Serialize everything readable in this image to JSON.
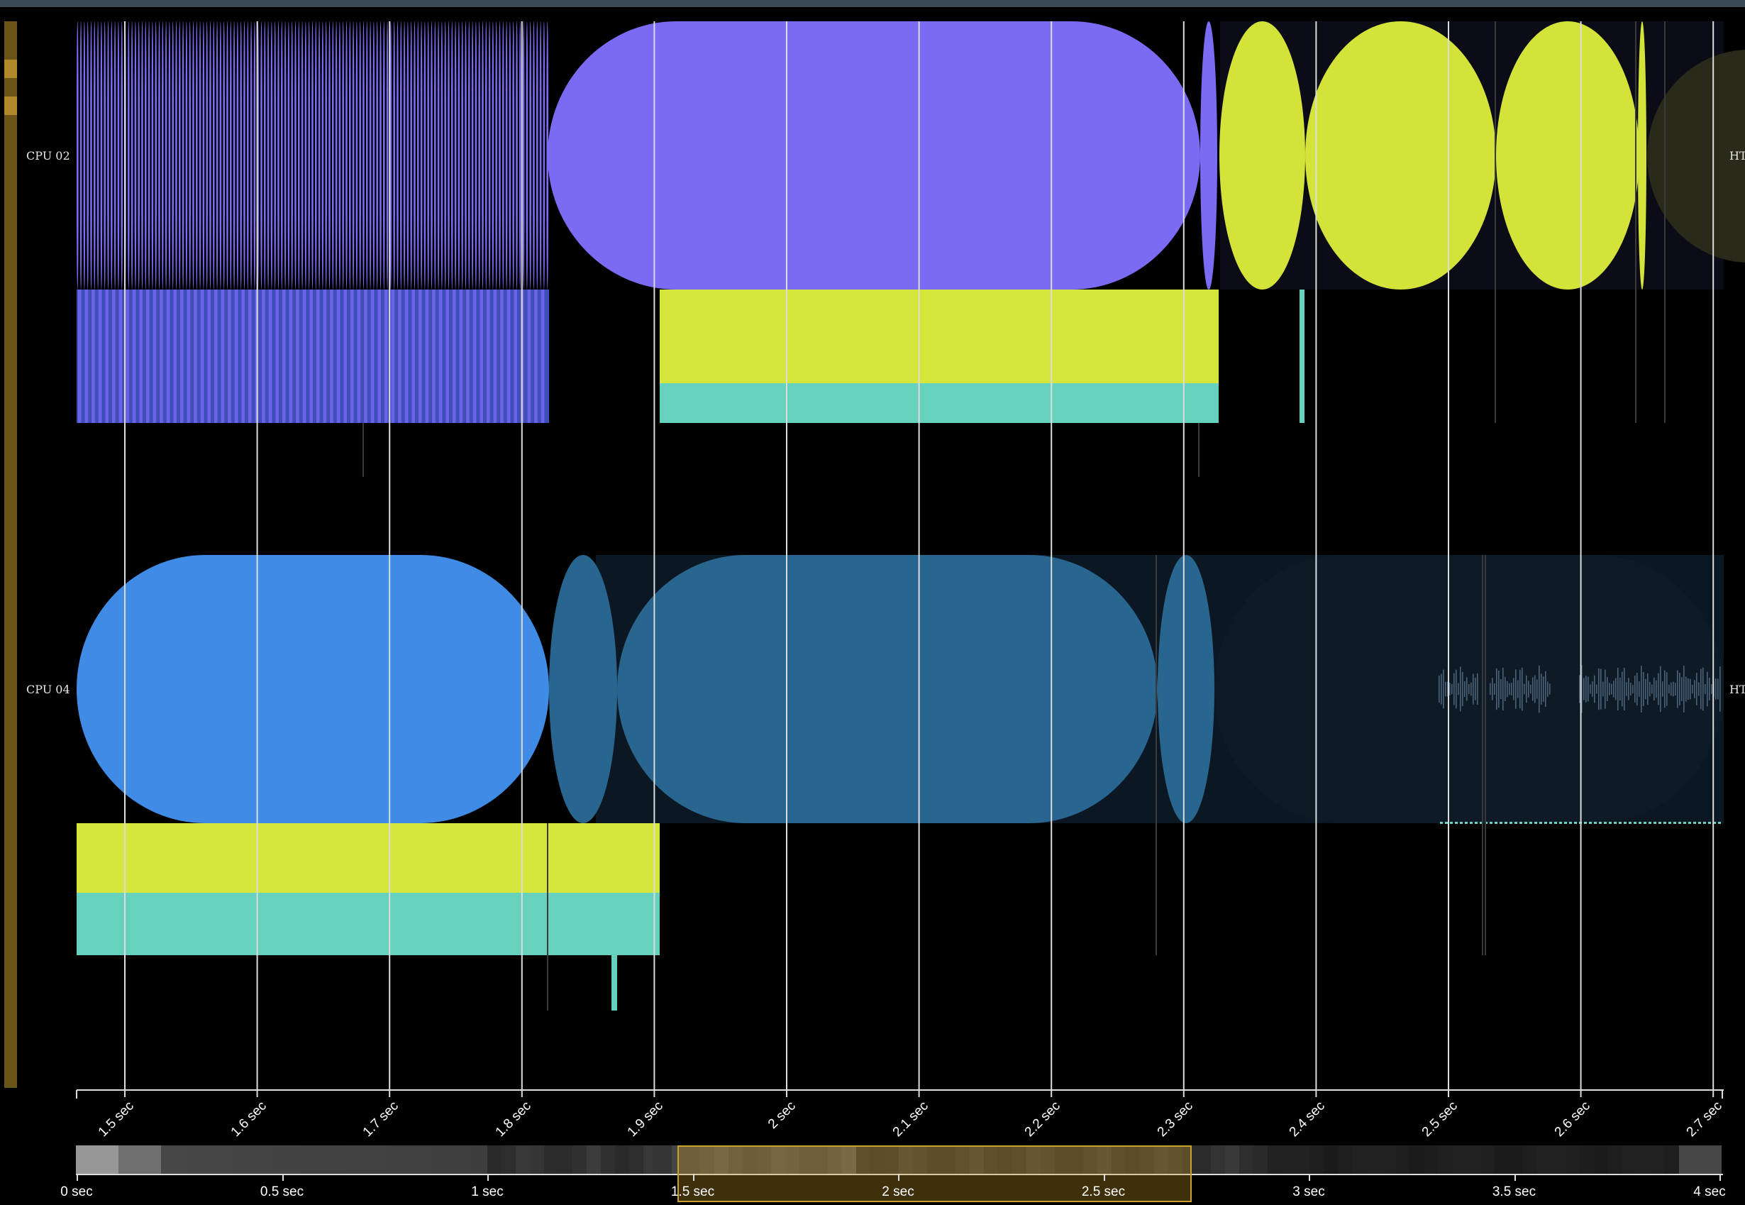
{
  "rows": [
    {
      "label": "CPU 02",
      "right_label": "HT"
    },
    {
      "label": "CPU 04",
      "right_label": "HT"
    }
  ],
  "axis": {
    "ticks": [
      "1.5 sec",
      "1.6 sec",
      "1.7 sec",
      "1.8 sec",
      "1.9 sec",
      "2 sec",
      "2.1 sec",
      "2.2 sec",
      "2.3 sec",
      "2.4 sec",
      "2.5 sec",
      "2.6 sec",
      "2.7 sec"
    ]
  },
  "overview": {
    "ticks": [
      "0 sec",
      "0.5 sec",
      "1 sec",
      "1.5 sec",
      "2 sec",
      "2.5 sec",
      "3 sec",
      "3.5 sec",
      "4 sec"
    ],
    "selection": {
      "start_sec": 1.46,
      "end_sec": 2.71
    }
  },
  "colors": {
    "background": "#000000",
    "purple": "#7b6af2",
    "purple_dark": "#3f4fb7",
    "yellow": "#d4e33a",
    "yellow_bar": "#d6e63a",
    "teal": "#66d2bd",
    "blue": "#3f8be6",
    "blue_muted": "#28668f",
    "gridline": "#dcdcdc",
    "selection": "#c9a02b"
  }
}
